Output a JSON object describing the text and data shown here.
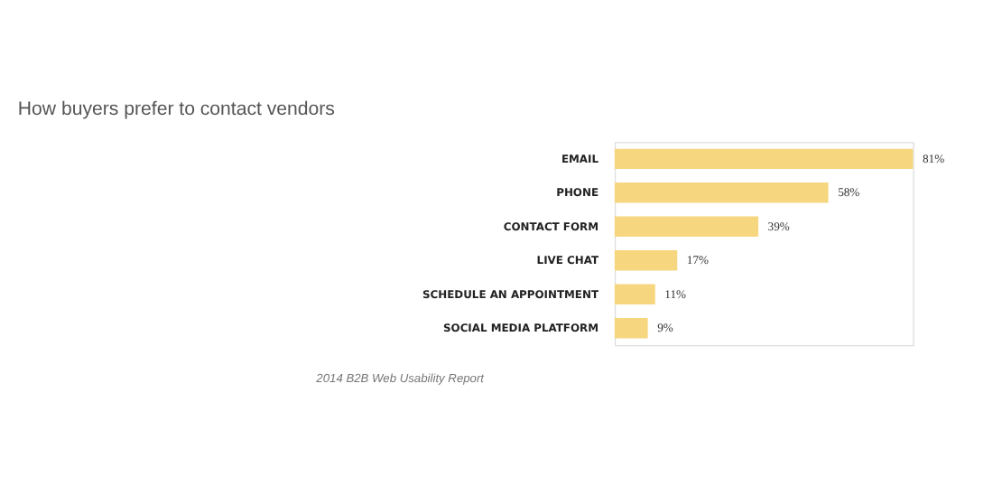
{
  "chart_data": {
    "type": "bar",
    "orientation": "horizontal",
    "title": "How buyers prefer to contact vendors",
    "categories": [
      "EMAIL",
      "PHONE",
      "CONTACT FORM",
      "LIVE CHAT",
      "SCHEDULE AN APPOINTMENT",
      "SOCIAL MEDIA PLATFORM"
    ],
    "values": [
      81,
      58,
      39,
      17,
      11,
      9
    ],
    "value_labels": [
      "81%",
      "58%",
      "39%",
      "17%",
      "11%",
      "9%"
    ],
    "color": "#f6d77f",
    "annotations": [
      "2014 B2B Web Usability Report"
    ]
  }
}
